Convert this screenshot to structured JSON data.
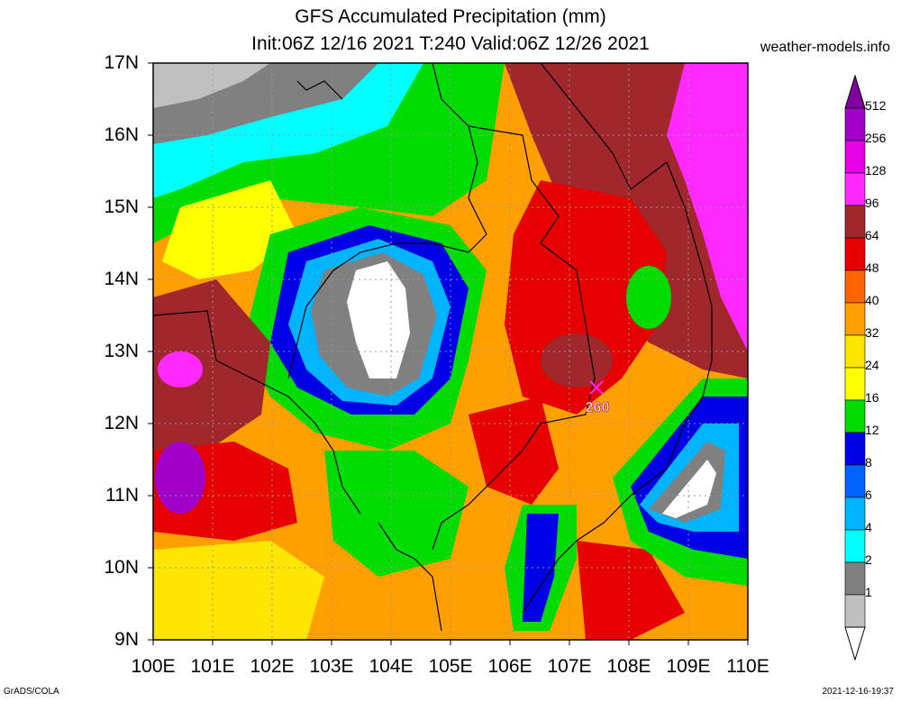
{
  "header": {
    "title_line1": "GFS Accumulated Precipitation (mm)",
    "title_line2": "Init:06Z 12/16 2021 T:240 Valid:06Z 12/26 2021",
    "site": "weather-models.info"
  },
  "axes": {
    "lat_labels": [
      "17N",
      "16N",
      "15N",
      "14N",
      "13N",
      "12N",
      "11N",
      "10N",
      "9N"
    ],
    "lon_labels": [
      "100E",
      "101E",
      "102E",
      "103E",
      "104E",
      "105E",
      "106E",
      "107E",
      "108E",
      "109E",
      "110E"
    ]
  },
  "legend": {
    "levels": [
      "512",
      "256",
      "128",
      "96",
      "64",
      "48",
      "40",
      "32",
      "24",
      "16",
      "12",
      "8",
      "6",
      "4",
      "2",
      "1"
    ],
    "colors": [
      "#8000a0",
      "#a000c8",
      "#e600e6",
      "#ff28ff",
      "#a0282c",
      "#e60000",
      "#ff6400",
      "#ffa000",
      "#ffe600",
      "#ffff00",
      "#00dc00",
      "#0000e6",
      "#0064ff",
      "#00b4ff",
      "#00ffff",
      "#808080",
      "#c0c0c0",
      "#ffffff"
    ]
  },
  "map": {
    "max_marker_label": "260"
  },
  "footer": {
    "left": "GrADS/COLA",
    "right": "2021-12-16-19:37"
  }
}
